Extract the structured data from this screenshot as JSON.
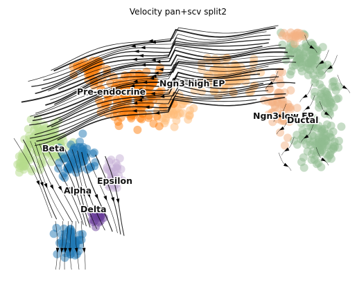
{
  "chart_data": {
    "type": "scatter",
    "title": "Velocity pan+scv split2",
    "xlabel": "",
    "ylabel": "",
    "axes_visible": false,
    "grid": false,
    "legend": "on data",
    "overlay": "velocity streamlines with arrowheads",
    "clusters": [
      {
        "name": "Ductal",
        "color": "#8fbc8f"
      },
      {
        "name": "Ngn3 low EP",
        "color": "#f4b183"
      },
      {
        "name": "Ngn3 high EP",
        "color": "#ffbb78"
      },
      {
        "name": "Pre-endocrine",
        "color": "#ff7f0e"
      },
      {
        "name": "Beta",
        "color": "#b5dc8b"
      },
      {
        "name": "Alpha",
        "color": "#1f77b4"
      },
      {
        "name": "Delta",
        "color": "#6a3d9a"
      },
      {
        "name": "Epsilon",
        "color": "#c5b0d5"
      }
    ],
    "labels": [
      {
        "text": "Pre-endocrine"
      },
      {
        "text": "Ngn3 high EP"
      },
      {
        "text": "Ngn3 low EP"
      },
      {
        "text": "Ductal"
      },
      {
        "text": "Beta"
      },
      {
        "text": "Epsilon"
      },
      {
        "text": "Alpha"
      },
      {
        "text": "Delta"
      }
    ]
  }
}
